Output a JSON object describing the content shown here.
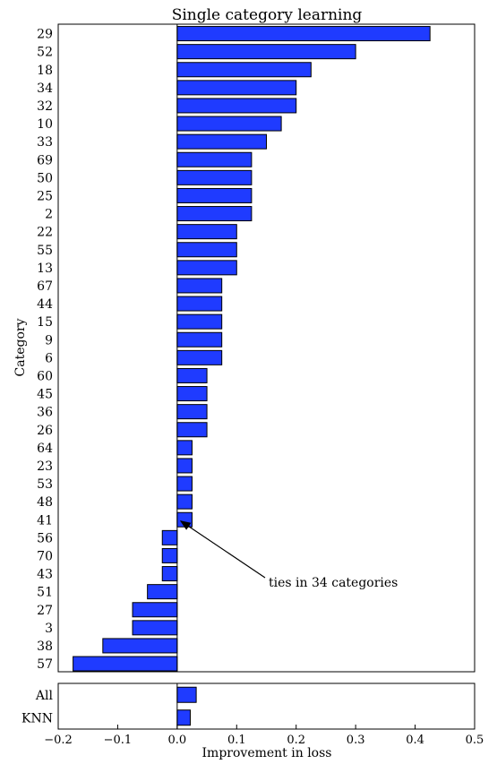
{
  "chart_data": [
    {
      "type": "bar",
      "orientation": "horizontal",
      "title": "Single category learning",
      "ylabel": "Category",
      "xlabel": "",
      "xlim": [
        -0.2,
        0.5
      ],
      "bar_color": "#1f3bff",
      "categories": [
        "29",
        "52",
        "18",
        "34",
        "32",
        "10",
        "33",
        "69",
        "50",
        "25",
        "2",
        "22",
        "55",
        "13",
        "67",
        "44",
        "15",
        "9",
        "6",
        "60",
        "45",
        "36",
        "26",
        "64",
        "23",
        "53",
        "48",
        "41",
        "56",
        "70",
        "43",
        "51",
        "27",
        "3",
        "38",
        "57"
      ],
      "values": [
        0.425,
        0.3,
        0.225,
        0.2,
        0.2,
        0.175,
        0.15,
        0.125,
        0.125,
        0.125,
        0.125,
        0.1,
        0.1,
        0.1,
        0.075,
        0.075,
        0.075,
        0.075,
        0.075,
        0.05,
        0.05,
        0.05,
        0.05,
        0.025,
        0.025,
        0.025,
        0.025,
        0.025,
        -0.025,
        -0.025,
        -0.025,
        -0.05,
        -0.075,
        -0.075,
        -0.125,
        -0.175
      ],
      "annotation": {
        "text": "ties in 34 categories",
        "points_to": [
          0.0,
          27.5
        ]
      }
    },
    {
      "type": "bar",
      "orientation": "horizontal",
      "title": "",
      "xlabel": "Improvement in loss",
      "xlim": [
        -0.2,
        0.5
      ],
      "bar_color": "#1f3bff",
      "categories": [
        "All",
        "KNN"
      ],
      "values": [
        0.032,
        0.022
      ],
      "xticks": [
        "−0.2",
        "−0.1",
        "0.0",
        "0.1",
        "0.2",
        "0.3",
        "0.4",
        "0.5"
      ]
    }
  ]
}
